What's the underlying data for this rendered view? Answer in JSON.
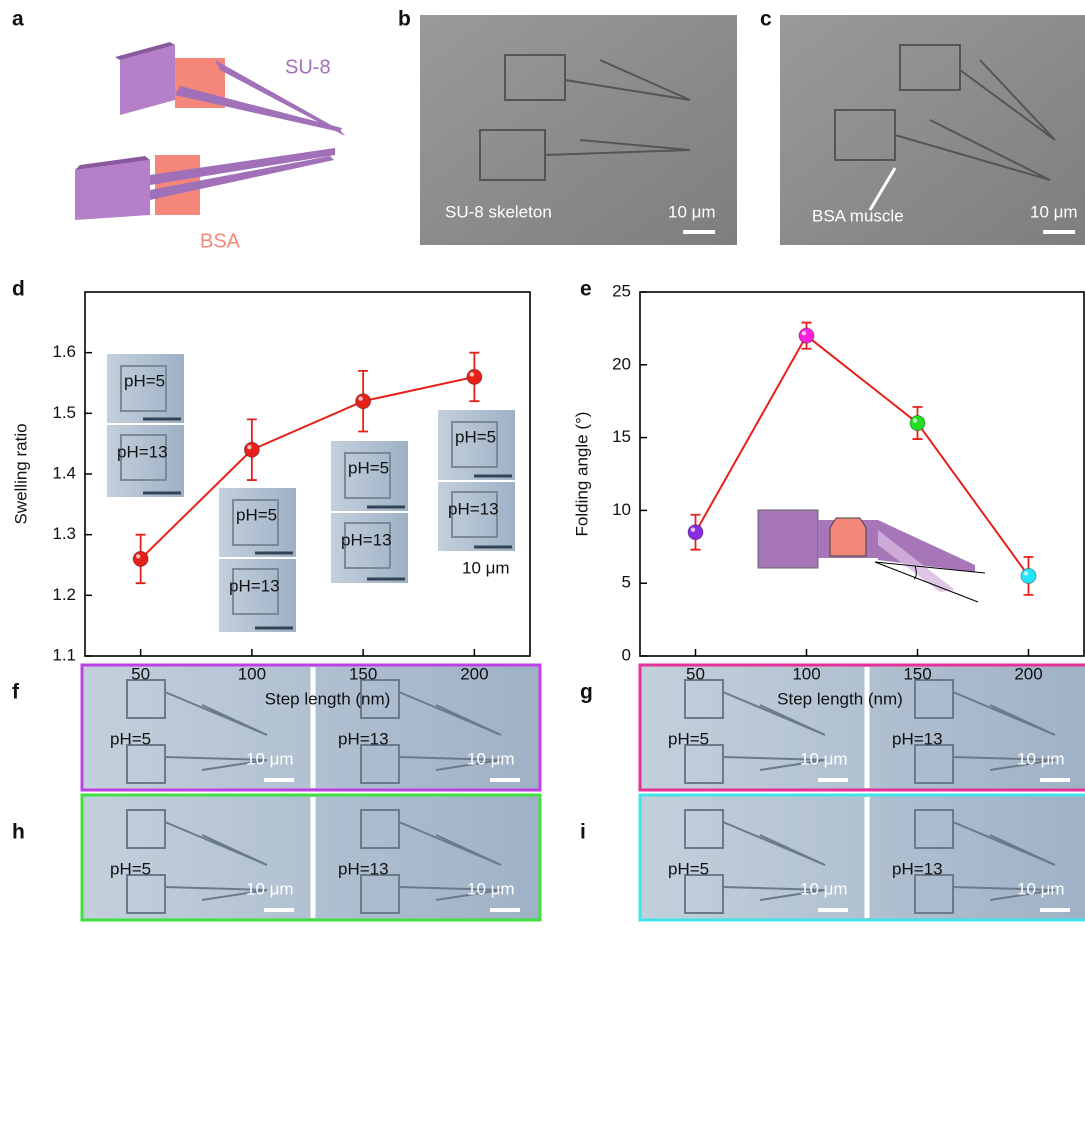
{
  "panel_labels": [
    "a",
    "b",
    "c",
    "d",
    "e",
    "f",
    "g",
    "h",
    "i"
  ],
  "panel_a": {
    "material_1": "SU-8",
    "material_2": "BSA"
  },
  "panel_b": {
    "caption": "SU-8 skeleton",
    "scale": "10 μm"
  },
  "panel_c": {
    "caption": "BSA muscle",
    "scale": "10 μm"
  },
  "chart_data": [
    {
      "type": "line",
      "x_label": "Step length (nm)",
      "y_label": "Swelling ratio",
      "x": [
        50,
        100,
        150,
        200
      ],
      "values": [
        1.26,
        1.44,
        1.52,
        1.56
      ],
      "errors": [
        0.04,
        0.05,
        0.05,
        0.04
      ],
      "color": "#e8201a",
      "xlim": [
        25,
        225
      ],
      "xticks": [
        50,
        100,
        150,
        200
      ],
      "ylim": [
        1.1,
        1.7
      ],
      "yticks": [
        1.1,
        1.2,
        1.3,
        1.4,
        1.5,
        1.6
      ],
      "insets": [
        {
          "top": "pH=5",
          "bottom": "pH=13"
        },
        {
          "top": "pH=5",
          "bottom": "pH=13"
        },
        {
          "top": "pH=5",
          "bottom": "pH=13"
        },
        {
          "top": "pH=5",
          "bottom": "pH=13"
        }
      ],
      "scale": "10 μm"
    },
    {
      "type": "line",
      "x_label": "Step length (nm)",
      "y_label": "Folding angle (°)",
      "x": [
        50,
        100,
        150,
        200
      ],
      "values": [
        8.5,
        22,
        16,
        5.5
      ],
      "errors": [
        1.2,
        0.9,
        1.1,
        1.3
      ],
      "color": "#e8201a",
      "point_colors": [
        "#8a2be2",
        "#ff1ee0",
        "#22dd22",
        "#22e5ff"
      ],
      "xlim": [
        25,
        225
      ],
      "xticks": [
        50,
        100,
        150,
        200
      ],
      "ylim": [
        0,
        25
      ],
      "yticks": [
        0,
        5,
        10,
        15,
        20,
        25
      ]
    }
  ],
  "micrographs": [
    {
      "left": "pH=5",
      "right": "pH=13",
      "scale_left": "10 μm",
      "scale_right": "10 μm",
      "border": "#c040e8"
    },
    {
      "left": "pH=5",
      "right": "pH=13",
      "scale_left": "10 μm",
      "scale_right": "10 μm",
      "border": "#e8309a"
    },
    {
      "left": "pH=5",
      "right": "pH=13",
      "scale_left": "10 μm",
      "scale_right": "10 μm",
      "border": "#40e040"
    },
    {
      "left": "pH=5",
      "right": "pH=13",
      "scale_left": "10 μm",
      "scale_right": "10 μm",
      "border": "#40e4e8"
    }
  ]
}
